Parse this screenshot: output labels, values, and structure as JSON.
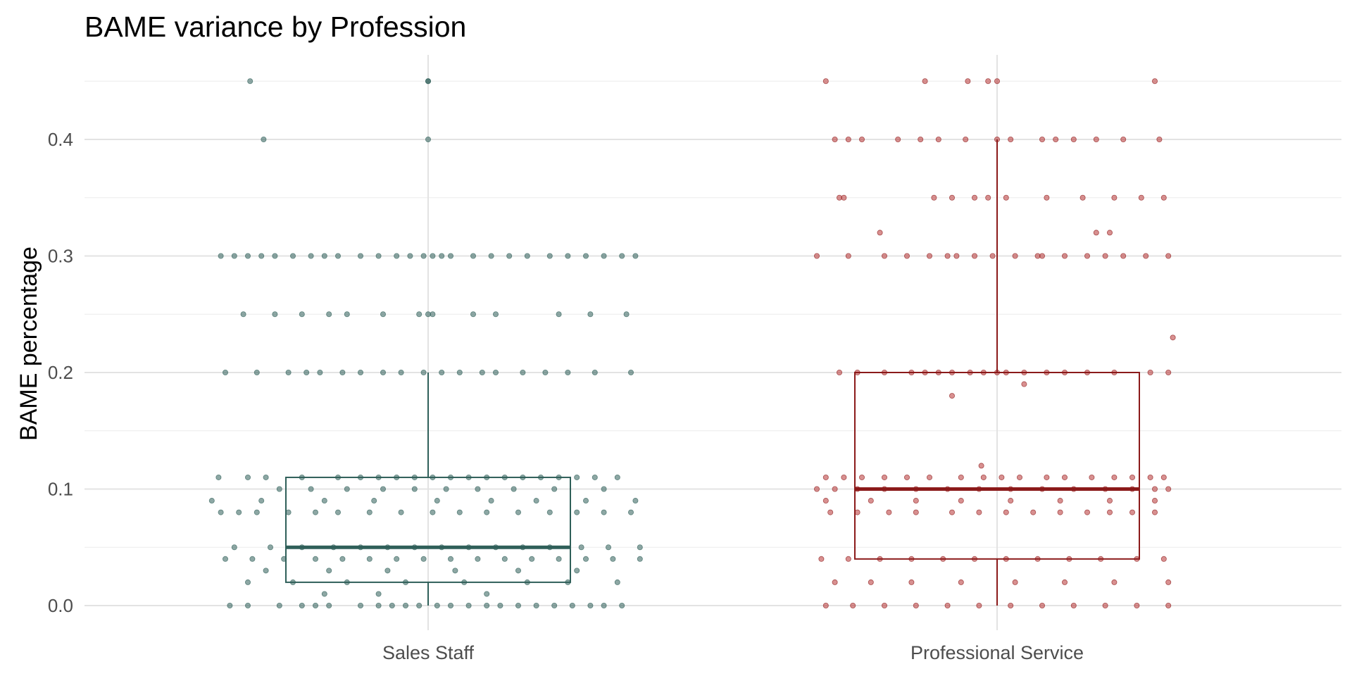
{
  "chart_data": {
    "type": "box",
    "title": "BAME variance by Profession",
    "xlabel": "",
    "ylabel": "BAME percentage",
    "ylim": [
      -0.03,
      0.47
    ],
    "yticks": [
      0.0,
      0.1,
      0.2,
      0.3,
      0.4
    ],
    "ytick_labels": [
      "0.0",
      "0.1",
      "0.2",
      "0.3",
      "0.4"
    ],
    "grid": true,
    "legend": "none",
    "categories": [
      "Sales Staff",
      "Professional Service"
    ],
    "boxes": [
      {
        "category": "Sales Staff",
        "color": "#2f5f59",
        "whisker_low": 0.0,
        "q1": 0.02,
        "median": 0.05,
        "q3": 0.11,
        "whisker_high": 0.2
      },
      {
        "category": "Professional Service",
        "color": "#8b1a1a",
        "whisker_low": 0.0,
        "q1": 0.04,
        "median": 0.1,
        "q3": 0.2,
        "whisker_high": 0.4
      }
    ],
    "points": {
      "Sales Staff": [
        [
          -0.79,
          0.45
        ],
        [
          0,
          0.45
        ],
        [
          0,
          0.45
        ],
        [
          -0.73,
          0.4
        ],
        [
          0,
          0.4
        ],
        [
          -0.92,
          0.3
        ],
        [
          -0.86,
          0.3
        ],
        [
          -0.8,
          0.3
        ],
        [
          -0.74,
          0.3
        ],
        [
          -0.68,
          0.3
        ],
        [
          -0.6,
          0.3
        ],
        [
          -0.52,
          0.3
        ],
        [
          -0.46,
          0.3
        ],
        [
          -0.4,
          0.3
        ],
        [
          -0.3,
          0.3
        ],
        [
          -0.22,
          0.3
        ],
        [
          -0.14,
          0.3
        ],
        [
          -0.08,
          0.3
        ],
        [
          -0.02,
          0.3
        ],
        [
          0.02,
          0.3
        ],
        [
          0.06,
          0.3
        ],
        [
          0.1,
          0.3
        ],
        [
          0.2,
          0.3
        ],
        [
          0.28,
          0.3
        ],
        [
          0.36,
          0.3
        ],
        [
          0.44,
          0.3
        ],
        [
          0.54,
          0.3
        ],
        [
          0.62,
          0.3
        ],
        [
          0.7,
          0.3
        ],
        [
          0.78,
          0.3
        ],
        [
          0.86,
          0.3
        ],
        [
          0.92,
          0.3
        ],
        [
          -0.82,
          0.25
        ],
        [
          -0.68,
          0.25
        ],
        [
          -0.56,
          0.25
        ],
        [
          -0.44,
          0.25
        ],
        [
          -0.36,
          0.25
        ],
        [
          -0.2,
          0.25
        ],
        [
          -0.04,
          0.25
        ],
        [
          0.0,
          0.25
        ],
        [
          0.02,
          0.25
        ],
        [
          0.2,
          0.25
        ],
        [
          0.3,
          0.25
        ],
        [
          0.58,
          0.25
        ],
        [
          0.72,
          0.25
        ],
        [
          0.88,
          0.25
        ],
        [
          -0.9,
          0.2
        ],
        [
          -0.76,
          0.2
        ],
        [
          -0.62,
          0.2
        ],
        [
          -0.54,
          0.2
        ],
        [
          -0.48,
          0.2
        ],
        [
          -0.38,
          0.2
        ],
        [
          -0.3,
          0.2
        ],
        [
          -0.2,
          0.2
        ],
        [
          -0.12,
          0.2
        ],
        [
          -0.02,
          0.2
        ],
        [
          0.06,
          0.2
        ],
        [
          0.14,
          0.2
        ],
        [
          0.24,
          0.2
        ],
        [
          0.3,
          0.2
        ],
        [
          0.42,
          0.2
        ],
        [
          0.52,
          0.2
        ],
        [
          0.62,
          0.2
        ],
        [
          0.74,
          0.2
        ],
        [
          0.9,
          0.2
        ],
        [
          -0.93,
          0.11
        ],
        [
          -0.8,
          0.11
        ],
        [
          -0.72,
          0.11
        ],
        [
          -0.56,
          0.11
        ],
        [
          -0.4,
          0.11
        ],
        [
          -0.3,
          0.11
        ],
        [
          -0.22,
          0.11
        ],
        [
          -0.14,
          0.11
        ],
        [
          -0.06,
          0.11
        ],
        [
          0.02,
          0.11
        ],
        [
          0.1,
          0.11
        ],
        [
          0.18,
          0.11
        ],
        [
          0.26,
          0.11
        ],
        [
          0.34,
          0.11
        ],
        [
          0.42,
          0.11
        ],
        [
          0.5,
          0.11
        ],
        [
          0.58,
          0.11
        ],
        [
          0.66,
          0.11
        ],
        [
          0.74,
          0.11
        ],
        [
          0.84,
          0.11
        ],
        [
          -0.66,
          0.1
        ],
        [
          -0.52,
          0.1
        ],
        [
          -0.36,
          0.1
        ],
        [
          -0.2,
          0.1
        ],
        [
          -0.06,
          0.1
        ],
        [
          0.08,
          0.1
        ],
        [
          0.22,
          0.1
        ],
        [
          0.38,
          0.1
        ],
        [
          0.56,
          0.1
        ],
        [
          0.78,
          0.1
        ],
        [
          -0.96,
          0.09
        ],
        [
          -0.74,
          0.09
        ],
        [
          -0.46,
          0.09
        ],
        [
          -0.24,
          0.09
        ],
        [
          0.04,
          0.09
        ],
        [
          0.28,
          0.09
        ],
        [
          0.48,
          0.09
        ],
        [
          0.7,
          0.09
        ],
        [
          0.92,
          0.09
        ],
        [
          -0.92,
          0.08
        ],
        [
          -0.84,
          0.08
        ],
        [
          -0.76,
          0.08
        ],
        [
          -0.62,
          0.08
        ],
        [
          -0.5,
          0.08
        ],
        [
          -0.4,
          0.08
        ],
        [
          -0.26,
          0.08
        ],
        [
          -0.12,
          0.08
        ],
        [
          0.02,
          0.08
        ],
        [
          0.14,
          0.08
        ],
        [
          0.26,
          0.08
        ],
        [
          0.4,
          0.08
        ],
        [
          0.54,
          0.08
        ],
        [
          0.66,
          0.08
        ],
        [
          0.78,
          0.08
        ],
        [
          0.9,
          0.08
        ],
        [
          -0.86,
          0.05
        ],
        [
          -0.7,
          0.05
        ],
        [
          -0.56,
          0.05
        ],
        [
          -0.42,
          0.05
        ],
        [
          -0.3,
          0.05
        ],
        [
          -0.18,
          0.05
        ],
        [
          -0.06,
          0.05
        ],
        [
          0.06,
          0.05
        ],
        [
          0.18,
          0.05
        ],
        [
          0.3,
          0.05
        ],
        [
          0.42,
          0.05
        ],
        [
          0.54,
          0.05
        ],
        [
          0.68,
          0.05
        ],
        [
          0.8,
          0.05
        ],
        [
          0.94,
          0.05
        ],
        [
          -0.9,
          0.04
        ],
        [
          -0.78,
          0.04
        ],
        [
          -0.64,
          0.04
        ],
        [
          -0.5,
          0.04
        ],
        [
          -0.38,
          0.04
        ],
        [
          -0.26,
          0.04
        ],
        [
          -0.14,
          0.04
        ],
        [
          -0.02,
          0.04
        ],
        [
          0.1,
          0.04
        ],
        [
          0.22,
          0.04
        ],
        [
          0.34,
          0.04
        ],
        [
          0.46,
          0.04
        ],
        [
          0.58,
          0.04
        ],
        [
          0.7,
          0.04
        ],
        [
          0.82,
          0.04
        ],
        [
          0.94,
          0.04
        ],
        [
          -0.72,
          0.03
        ],
        [
          -0.44,
          0.03
        ],
        [
          -0.18,
          0.03
        ],
        [
          0.12,
          0.03
        ],
        [
          0.4,
          0.03
        ],
        [
          0.66,
          0.03
        ],
        [
          -0.8,
          0.02
        ],
        [
          -0.6,
          0.02
        ],
        [
          -0.36,
          0.02
        ],
        [
          -0.1,
          0.02
        ],
        [
          0.16,
          0.02
        ],
        [
          0.44,
          0.02
        ],
        [
          0.62,
          0.02
        ],
        [
          0.84,
          0.02
        ],
        [
          -0.46,
          0.01
        ],
        [
          -0.22,
          0.01
        ],
        [
          0.26,
          0.01
        ],
        [
          -0.88,
          0.0
        ],
        [
          -0.8,
          0.0
        ],
        [
          -0.66,
          0.0
        ],
        [
          -0.56,
          0.0
        ],
        [
          -0.5,
          0.0
        ],
        [
          -0.44,
          0.0
        ],
        [
          -0.3,
          0.0
        ],
        [
          -0.22,
          0.0
        ],
        [
          -0.16,
          0.0
        ],
        [
          -0.1,
          0.0
        ],
        [
          -0.04,
          0.0
        ],
        [
          0.04,
          0.0
        ],
        [
          0.1,
          0.0
        ],
        [
          0.18,
          0.0
        ],
        [
          0.26,
          0.0
        ],
        [
          0.32,
          0.0
        ],
        [
          0.4,
          0.0
        ],
        [
          0.48,
          0.0
        ],
        [
          0.56,
          0.0
        ],
        [
          0.64,
          0.0
        ],
        [
          0.72,
          0.0
        ],
        [
          0.78,
          0.0
        ],
        [
          0.86,
          0.0
        ]
      ],
      "Professional Service": [
        [
          -0.76,
          0.45
        ],
        [
          -0.32,
          0.45
        ],
        [
          -0.13,
          0.45
        ],
        [
          -0.04,
          0.45
        ],
        [
          0.0,
          0.45
        ],
        [
          0.7,
          0.45
        ],
        [
          -0.72,
          0.4
        ],
        [
          -0.66,
          0.4
        ],
        [
          -0.6,
          0.4
        ],
        [
          -0.44,
          0.4
        ],
        [
          -0.34,
          0.4
        ],
        [
          -0.26,
          0.4
        ],
        [
          -0.14,
          0.4
        ],
        [
          0.0,
          0.4
        ],
        [
          0.06,
          0.4
        ],
        [
          0.2,
          0.4
        ],
        [
          0.26,
          0.4
        ],
        [
          0.34,
          0.4
        ],
        [
          0.44,
          0.4
        ],
        [
          0.56,
          0.4
        ],
        [
          0.72,
          0.4
        ],
        [
          -0.7,
          0.35
        ],
        [
          -0.68,
          0.35
        ],
        [
          -0.28,
          0.35
        ],
        [
          -0.2,
          0.35
        ],
        [
          -0.1,
          0.35
        ],
        [
          -0.04,
          0.35
        ],
        [
          0.04,
          0.35
        ],
        [
          0.22,
          0.35
        ],
        [
          0.38,
          0.35
        ],
        [
          0.52,
          0.35
        ],
        [
          0.64,
          0.35
        ],
        [
          0.74,
          0.35
        ],
        [
          -0.52,
          0.32
        ],
        [
          0.44,
          0.32
        ],
        [
          0.5,
          0.32
        ],
        [
          -0.8,
          0.3
        ],
        [
          -0.66,
          0.3
        ],
        [
          -0.5,
          0.3
        ],
        [
          -0.4,
          0.3
        ],
        [
          -0.3,
          0.3
        ],
        [
          -0.22,
          0.3
        ],
        [
          -0.18,
          0.3
        ],
        [
          -0.1,
          0.3
        ],
        [
          -0.02,
          0.3
        ],
        [
          0.08,
          0.3
        ],
        [
          0.18,
          0.3
        ],
        [
          0.2,
          0.3
        ],
        [
          0.3,
          0.3
        ],
        [
          0.4,
          0.3
        ],
        [
          0.48,
          0.3
        ],
        [
          0.56,
          0.3
        ],
        [
          0.66,
          0.3
        ],
        [
          0.76,
          0.3
        ],
        [
          0.78,
          0.23
        ],
        [
          -0.7,
          0.2
        ],
        [
          -0.62,
          0.2
        ],
        [
          -0.5,
          0.2
        ],
        [
          -0.38,
          0.2
        ],
        [
          -0.32,
          0.2
        ],
        [
          -0.26,
          0.2
        ],
        [
          -0.2,
          0.2
        ],
        [
          -0.12,
          0.2
        ],
        [
          -0.06,
          0.2
        ],
        [
          0.0,
          0.2
        ],
        [
          0.04,
          0.2
        ],
        [
          0.12,
          0.2
        ],
        [
          0.22,
          0.2
        ],
        [
          0.3,
          0.2
        ],
        [
          0.4,
          0.2
        ],
        [
          0.52,
          0.2
        ],
        [
          0.68,
          0.2
        ],
        [
          0.76,
          0.2
        ],
        [
          0.12,
          0.19
        ],
        [
          -0.2,
          0.18
        ],
        [
          -0.07,
          0.12
        ],
        [
          -0.76,
          0.11
        ],
        [
          -0.68,
          0.11
        ],
        [
          -0.6,
          0.11
        ],
        [
          -0.5,
          0.11
        ],
        [
          -0.4,
          0.11
        ],
        [
          -0.3,
          0.11
        ],
        [
          -0.16,
          0.11
        ],
        [
          -0.06,
          0.11
        ],
        [
          0.02,
          0.11
        ],
        [
          0.1,
          0.11
        ],
        [
          0.22,
          0.11
        ],
        [
          0.3,
          0.11
        ],
        [
          0.42,
          0.11
        ],
        [
          0.52,
          0.11
        ],
        [
          0.6,
          0.11
        ],
        [
          0.68,
          0.11
        ],
        [
          0.74,
          0.11
        ],
        [
          -0.8,
          0.1
        ],
        [
          -0.72,
          0.1
        ],
        [
          -0.62,
          0.1
        ],
        [
          -0.5,
          0.1
        ],
        [
          -0.36,
          0.1
        ],
        [
          -0.22,
          0.1
        ],
        [
          -0.08,
          0.1
        ],
        [
          0.06,
          0.1
        ],
        [
          0.2,
          0.1
        ],
        [
          0.34,
          0.1
        ],
        [
          0.48,
          0.1
        ],
        [
          0.6,
          0.1
        ],
        [
          0.7,
          0.1
        ],
        [
          0.76,
          0.1
        ],
        [
          -0.76,
          0.09
        ],
        [
          -0.56,
          0.09
        ],
        [
          -0.36,
          0.09
        ],
        [
          -0.16,
          0.09
        ],
        [
          0.06,
          0.09
        ],
        [
          0.28,
          0.09
        ],
        [
          0.5,
          0.09
        ],
        [
          0.7,
          0.09
        ],
        [
          -0.74,
          0.08
        ],
        [
          -0.62,
          0.08
        ],
        [
          -0.48,
          0.08
        ],
        [
          -0.36,
          0.08
        ],
        [
          -0.2,
          0.08
        ],
        [
          -0.08,
          0.08
        ],
        [
          0.04,
          0.08
        ],
        [
          0.16,
          0.08
        ],
        [
          0.28,
          0.08
        ],
        [
          0.4,
          0.08
        ],
        [
          0.5,
          0.08
        ],
        [
          0.6,
          0.08
        ],
        [
          0.7,
          0.08
        ],
        [
          -0.78,
          0.04
        ],
        [
          -0.66,
          0.04
        ],
        [
          -0.52,
          0.04
        ],
        [
          -0.38,
          0.04
        ],
        [
          -0.24,
          0.04
        ],
        [
          -0.1,
          0.04
        ],
        [
          0.04,
          0.04
        ],
        [
          0.18,
          0.04
        ],
        [
          0.32,
          0.04
        ],
        [
          0.46,
          0.04
        ],
        [
          0.62,
          0.04
        ],
        [
          0.74,
          0.04
        ],
        [
          -0.72,
          0.02
        ],
        [
          -0.56,
          0.02
        ],
        [
          -0.38,
          0.02
        ],
        [
          -0.16,
          0.02
        ],
        [
          0.08,
          0.02
        ],
        [
          0.3,
          0.02
        ],
        [
          0.52,
          0.02
        ],
        [
          0.76,
          0.02
        ],
        [
          -0.76,
          0.0
        ],
        [
          -0.64,
          0.0
        ],
        [
          -0.5,
          0.0
        ],
        [
          -0.36,
          0.0
        ],
        [
          -0.22,
          0.0
        ],
        [
          -0.08,
          0.0
        ],
        [
          0.06,
          0.0
        ],
        [
          0.2,
          0.0
        ],
        [
          0.34,
          0.0
        ],
        [
          0.48,
          0.0
        ],
        [
          0.62,
          0.0
        ],
        [
          0.76,
          0.0
        ]
      ]
    }
  }
}
